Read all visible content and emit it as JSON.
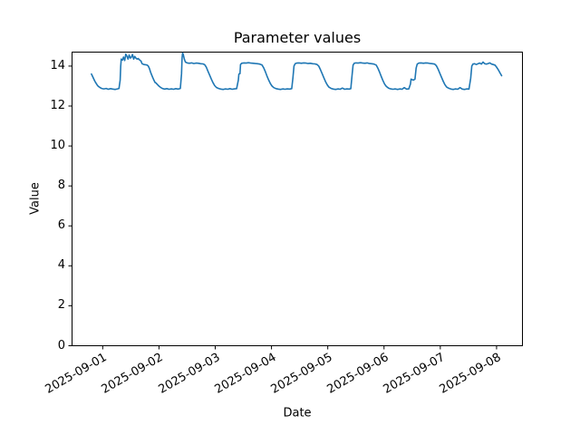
{
  "chart_data": {
    "type": "line",
    "title": "Parameter values",
    "xlabel": "Date",
    "ylabel": "Value",
    "legend": null,
    "grid": false,
    "line_color": "#1f77b4",
    "axis_color": "#000000",
    "background_color": "#ffffff",
    "x_unit": "days since 2025-09-01 00:00",
    "xlim": [
      -0.545,
      7.46
    ],
    "ylim": [
      0,
      14.7
    ],
    "x_tick_values": [
      0,
      1,
      2,
      3,
      4,
      5,
      6,
      7
    ],
    "x_tick_labels": [
      "2025-09-01",
      "2025-09-02",
      "2025-09-03",
      "2025-09-04",
      "2025-09-05",
      "2025-09-06",
      "2025-09-07",
      "2025-09-08"
    ],
    "y_tick_values": [
      0,
      2,
      4,
      6,
      8,
      10,
      12,
      14
    ],
    "y_tick_labels": [
      "0",
      "2",
      "4",
      "6",
      "8",
      "10",
      "12",
      "14"
    ],
    "points": [
      [
        -0.2,
        13.6
      ],
      [
        -0.18,
        13.48
      ],
      [
        -0.16,
        13.36
      ],
      [
        -0.14,
        13.25
      ],
      [
        -0.12,
        13.15
      ],
      [
        -0.1,
        13.06
      ],
      [
        -0.08,
        12.99
      ],
      [
        -0.05,
        12.93
      ],
      [
        -0.02,
        12.88
      ],
      [
        0.02,
        12.86
      ],
      [
        0.06,
        12.88
      ],
      [
        0.1,
        12.84
      ],
      [
        0.14,
        12.87
      ],
      [
        0.18,
        12.85
      ],
      [
        0.22,
        12.83
      ],
      [
        0.26,
        12.86
      ],
      [
        0.29,
        12.88
      ],
      [
        0.31,
        13.3
      ],
      [
        0.32,
        14.0
      ],
      [
        0.33,
        14.35
      ],
      [
        0.35,
        14.3
      ],
      [
        0.37,
        14.45
      ],
      [
        0.39,
        14.28
      ],
      [
        0.41,
        14.6
      ],
      [
        0.43,
        14.5
      ],
      [
        0.45,
        14.35
      ],
      [
        0.47,
        14.55
      ],
      [
        0.49,
        14.4
      ],
      [
        0.51,
        14.45
      ],
      [
        0.53,
        14.58
      ],
      [
        0.55,
        14.35
      ],
      [
        0.57,
        14.48
      ],
      [
        0.59,
        14.4
      ],
      [
        0.61,
        14.35
      ],
      [
        0.63,
        14.38
      ],
      [
        0.65,
        14.32
      ],
      [
        0.68,
        14.25
      ],
      [
        0.7,
        14.12
      ],
      [
        0.73,
        14.08
      ],
      [
        0.76,
        14.07
      ],
      [
        0.79,
        14.05
      ],
      [
        0.81,
        14.0
      ],
      [
        0.83,
        13.88
      ],
      [
        0.85,
        13.7
      ],
      [
        0.87,
        13.55
      ],
      [
        0.89,
        13.42
      ],
      [
        0.91,
        13.3
      ],
      [
        0.93,
        13.18
      ],
      [
        0.95,
        13.15
      ],
      [
        0.97,
        13.08
      ],
      [
        1.0,
        13.0
      ],
      [
        1.03,
        12.93
      ],
      [
        1.06,
        12.88
      ],
      [
        1.1,
        12.85
      ],
      [
        1.14,
        12.87
      ],
      [
        1.18,
        12.84
      ],
      [
        1.22,
        12.86
      ],
      [
        1.26,
        12.84
      ],
      [
        1.3,
        12.87
      ],
      [
        1.34,
        12.85
      ],
      [
        1.38,
        12.88
      ],
      [
        1.4,
        13.6
      ],
      [
        1.41,
        14.4
      ],
      [
        1.42,
        14.65
      ],
      [
        1.43,
        14.6
      ],
      [
        1.45,
        14.35
      ],
      [
        1.47,
        14.2
      ],
      [
        1.5,
        14.16
      ],
      [
        1.54,
        14.14
      ],
      [
        1.58,
        14.16
      ],
      [
        1.62,
        14.13
      ],
      [
        1.66,
        14.15
      ],
      [
        1.7,
        14.14
      ],
      [
        1.74,
        14.12
      ],
      [
        1.78,
        14.11
      ],
      [
        1.81,
        14.08
      ],
      [
        1.84,
        13.95
      ],
      [
        1.87,
        13.75
      ],
      [
        1.9,
        13.55
      ],
      [
        1.93,
        13.35
      ],
      [
        1.96,
        13.17
      ],
      [
        1.99,
        13.02
      ],
      [
        2.02,
        12.93
      ],
      [
        2.06,
        12.88
      ],
      [
        2.1,
        12.85
      ],
      [
        2.14,
        12.83
      ],
      [
        2.18,
        12.86
      ],
      [
        2.22,
        12.84
      ],
      [
        2.26,
        12.87
      ],
      [
        2.3,
        12.84
      ],
      [
        2.34,
        12.86
      ],
      [
        2.38,
        12.87
      ],
      [
        2.41,
        13.3
      ],
      [
        2.42,
        13.6
      ],
      [
        2.44,
        13.62
      ],
      [
        2.45,
        14.08
      ],
      [
        2.47,
        14.14
      ],
      [
        2.51,
        14.16
      ],
      [
        2.55,
        14.15
      ],
      [
        2.59,
        14.17
      ],
      [
        2.63,
        14.15
      ],
      [
        2.67,
        14.14
      ],
      [
        2.71,
        14.13
      ],
      [
        2.75,
        14.12
      ],
      [
        2.79,
        14.1
      ],
      [
        2.83,
        14.06
      ],
      [
        2.86,
        13.92
      ],
      [
        2.89,
        13.72
      ],
      [
        2.92,
        13.5
      ],
      [
        2.95,
        13.3
      ],
      [
        2.98,
        13.12
      ],
      [
        3.01,
        13.0
      ],
      [
        3.04,
        12.92
      ],
      [
        3.08,
        12.87
      ],
      [
        3.12,
        12.85
      ],
      [
        3.16,
        12.83
      ],
      [
        3.2,
        12.86
      ],
      [
        3.24,
        12.84
      ],
      [
        3.28,
        12.86
      ],
      [
        3.32,
        12.85
      ],
      [
        3.36,
        12.87
      ],
      [
        3.38,
        13.4
      ],
      [
        3.4,
        14.0
      ],
      [
        3.42,
        14.12
      ],
      [
        3.45,
        14.15
      ],
      [
        3.49,
        14.16
      ],
      [
        3.53,
        14.14
      ],
      [
        3.57,
        14.16
      ],
      [
        3.61,
        14.15
      ],
      [
        3.65,
        14.13
      ],
      [
        3.69,
        14.14
      ],
      [
        3.73,
        14.12
      ],
      [
        3.77,
        14.11
      ],
      [
        3.81,
        14.08
      ],
      [
        3.84,
        14.0
      ],
      [
        3.87,
        13.82
      ],
      [
        3.9,
        13.62
      ],
      [
        3.93,
        13.42
      ],
      [
        3.96,
        13.22
      ],
      [
        3.99,
        13.06
      ],
      [
        4.02,
        12.95
      ],
      [
        4.06,
        12.88
      ],
      [
        4.1,
        12.85
      ],
      [
        4.14,
        12.83
      ],
      [
        4.18,
        12.86
      ],
      [
        4.22,
        12.84
      ],
      [
        4.26,
        12.9
      ],
      [
        4.3,
        12.84
      ],
      [
        4.34,
        12.86
      ],
      [
        4.38,
        12.85
      ],
      [
        4.41,
        12.87
      ],
      [
        4.43,
        13.5
      ],
      [
        4.45,
        14.05
      ],
      [
        4.47,
        14.14
      ],
      [
        4.5,
        14.16
      ],
      [
        4.54,
        14.15
      ],
      [
        4.58,
        14.17
      ],
      [
        4.62,
        14.15
      ],
      [
        4.66,
        14.14
      ],
      [
        4.7,
        14.16
      ],
      [
        4.74,
        14.13
      ],
      [
        4.78,
        14.12
      ],
      [
        4.82,
        14.1
      ],
      [
        4.86,
        14.05
      ],
      [
        4.89,
        13.9
      ],
      [
        4.92,
        13.7
      ],
      [
        4.95,
        13.48
      ],
      [
        4.98,
        13.28
      ],
      [
        5.01,
        13.1
      ],
      [
        5.04,
        12.98
      ],
      [
        5.08,
        12.9
      ],
      [
        5.12,
        12.86
      ],
      [
        5.16,
        12.84
      ],
      [
        5.2,
        12.86
      ],
      [
        5.24,
        12.83
      ],
      [
        5.28,
        12.86
      ],
      [
        5.32,
        12.84
      ],
      [
        5.36,
        12.92
      ],
      [
        5.4,
        12.85
      ],
      [
        5.44,
        12.86
      ],
      [
        5.47,
        13.1
      ],
      [
        5.48,
        13.35
      ],
      [
        5.5,
        13.32
      ],
      [
        5.52,
        13.3
      ],
      [
        5.55,
        13.35
      ],
      [
        5.57,
        13.9
      ],
      [
        5.59,
        14.1
      ],
      [
        5.62,
        14.15
      ],
      [
        5.66,
        14.16
      ],
      [
        5.7,
        14.14
      ],
      [
        5.74,
        14.16
      ],
      [
        5.78,
        14.15
      ],
      [
        5.82,
        14.13
      ],
      [
        5.86,
        14.12
      ],
      [
        5.9,
        14.1
      ],
      [
        5.93,
        14.02
      ],
      [
        5.96,
        13.85
      ],
      [
        5.99,
        13.65
      ],
      [
        6.02,
        13.45
      ],
      [
        6.05,
        13.25
      ],
      [
        6.08,
        13.08
      ],
      [
        6.11,
        12.96
      ],
      [
        6.15,
        12.89
      ],
      [
        6.19,
        12.85
      ],
      [
        6.23,
        12.83
      ],
      [
        6.27,
        12.86
      ],
      [
        6.31,
        12.84
      ],
      [
        6.35,
        12.92
      ],
      [
        6.39,
        12.85
      ],
      [
        6.43,
        12.83
      ],
      [
        6.47,
        12.86
      ],
      [
        6.51,
        12.85
      ],
      [
        6.54,
        13.4
      ],
      [
        6.56,
        14.0
      ],
      [
        6.58,
        14.1
      ],
      [
        6.61,
        14.12
      ],
      [
        6.64,
        14.08
      ],
      [
        6.67,
        14.12
      ],
      [
        6.7,
        14.15
      ],
      [
        6.73,
        14.1
      ],
      [
        6.76,
        14.2
      ],
      [
        6.79,
        14.12
      ],
      [
        6.82,
        14.1
      ],
      [
        6.85,
        14.13
      ],
      [
        6.88,
        14.16
      ],
      [
        6.91,
        14.1
      ],
      [
        6.94,
        14.08
      ],
      [
        6.97,
        14.05
      ],
      [
        7.0,
        13.95
      ],
      [
        7.03,
        13.82
      ],
      [
        7.06,
        13.66
      ],
      [
        7.09,
        13.52
      ]
    ]
  }
}
